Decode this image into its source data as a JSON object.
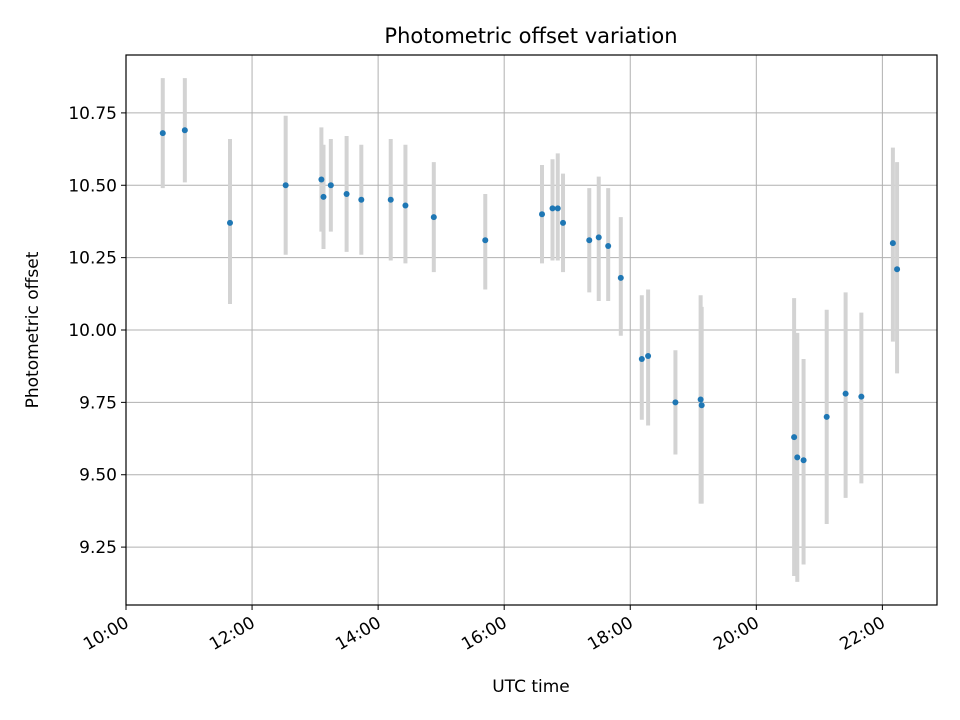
{
  "chart_data": {
    "type": "scatter",
    "title": "Photometric offset variation",
    "xlabel": "UTC time",
    "ylabel": "Photometric offset",
    "x_unit": "hours UTC",
    "xlim": [
      "10:00",
      "22:52"
    ],
    "ylim": [
      9.05,
      10.95
    ],
    "x_ticks": [
      "10:00",
      "12:00",
      "14:00",
      "16:00",
      "18:00",
      "20:00",
      "22:00"
    ],
    "y_ticks": [
      "9.25",
      "9.50",
      "9.75",
      "10.00",
      "10.25",
      "10.50",
      "10.75"
    ],
    "grid": true,
    "series": [
      {
        "marker_color": "#1f77b4",
        "errorbar_color": "#d3d3d3",
        "points": [
          {
            "x": "10:35",
            "y": 10.68,
            "ylow": 10.49,
            "yhigh": 10.87
          },
          {
            "x": "10:56",
            "y": 10.69,
            "ylow": 10.51,
            "yhigh": 10.87
          },
          {
            "x": "11:39",
            "y": 10.37,
            "ylow": 10.09,
            "yhigh": 10.66
          },
          {
            "x": "12:32",
            "y": 10.5,
            "ylow": 10.26,
            "yhigh": 10.74
          },
          {
            "x": "13:06",
            "y": 10.52,
            "ylow": 10.34,
            "yhigh": 10.7
          },
          {
            "x": "13:08",
            "y": 10.46,
            "ylow": 10.28,
            "yhigh": 10.64
          },
          {
            "x": "13:15",
            "y": 10.5,
            "ylow": 10.34,
            "yhigh": 10.66
          },
          {
            "x": "13:30",
            "y": 10.47,
            "ylow": 10.27,
            "yhigh": 10.67
          },
          {
            "x": "13:44",
            "y": 10.45,
            "ylow": 10.26,
            "yhigh": 10.64
          },
          {
            "x": "14:12",
            "y": 10.45,
            "ylow": 10.24,
            "yhigh": 10.66
          },
          {
            "x": "14:26",
            "y": 10.43,
            "ylow": 10.23,
            "yhigh": 10.64
          },
          {
            "x": "14:53",
            "y": 10.39,
            "ylow": 10.2,
            "yhigh": 10.58
          },
          {
            "x": "15:42",
            "y": 10.31,
            "ylow": 10.14,
            "yhigh": 10.47
          },
          {
            "x": "16:36",
            "y": 10.4,
            "ylow": 10.23,
            "yhigh": 10.57
          },
          {
            "x": "16:46",
            "y": 10.42,
            "ylow": 10.24,
            "yhigh": 10.59
          },
          {
            "x": "16:51",
            "y": 10.42,
            "ylow": 10.24,
            "yhigh": 10.61
          },
          {
            "x": "16:56",
            "y": 10.37,
            "ylow": 10.2,
            "yhigh": 10.54
          },
          {
            "x": "17:21",
            "y": 10.31,
            "ylow": 10.13,
            "yhigh": 10.49
          },
          {
            "x": "17:30",
            "y": 10.32,
            "ylow": 10.1,
            "yhigh": 10.53
          },
          {
            "x": "17:39",
            "y": 10.29,
            "ylow": 10.1,
            "yhigh": 10.49
          },
          {
            "x": "17:51",
            "y": 10.18,
            "ylow": 9.98,
            "yhigh": 10.39
          },
          {
            "x": "18:11",
            "y": 9.9,
            "ylow": 9.69,
            "yhigh": 10.12
          },
          {
            "x": "18:17",
            "y": 9.91,
            "ylow": 9.67,
            "yhigh": 10.14
          },
          {
            "x": "18:43",
            "y": 9.75,
            "ylow": 9.57,
            "yhigh": 9.93
          },
          {
            "x": "19:07",
            "y": 9.76,
            "ylow": 9.4,
            "yhigh": 10.12
          },
          {
            "x": "19:08",
            "y": 9.74,
            "ylow": 9.4,
            "yhigh": 10.08
          },
          {
            "x": "20:36",
            "y": 9.63,
            "ylow": 9.15,
            "yhigh": 10.11
          },
          {
            "x": "20:39",
            "y": 9.56,
            "ylow": 9.13,
            "yhigh": 9.99
          },
          {
            "x": "20:45",
            "y": 9.55,
            "ylow": 9.19,
            "yhigh": 9.9
          },
          {
            "x": "21:07",
            "y": 9.7,
            "ylow": 9.33,
            "yhigh": 10.07
          },
          {
            "x": "21:25",
            "y": 9.78,
            "ylow": 9.42,
            "yhigh": 10.13
          },
          {
            "x": "21:40",
            "y": 9.77,
            "ylow": 9.47,
            "yhigh": 10.06
          },
          {
            "x": "22:10",
            "y": 10.3,
            "ylow": 9.96,
            "yhigh": 10.63
          },
          {
            "x": "22:14",
            "y": 10.21,
            "ylow": 9.85,
            "yhigh": 10.58
          }
        ]
      }
    ]
  }
}
